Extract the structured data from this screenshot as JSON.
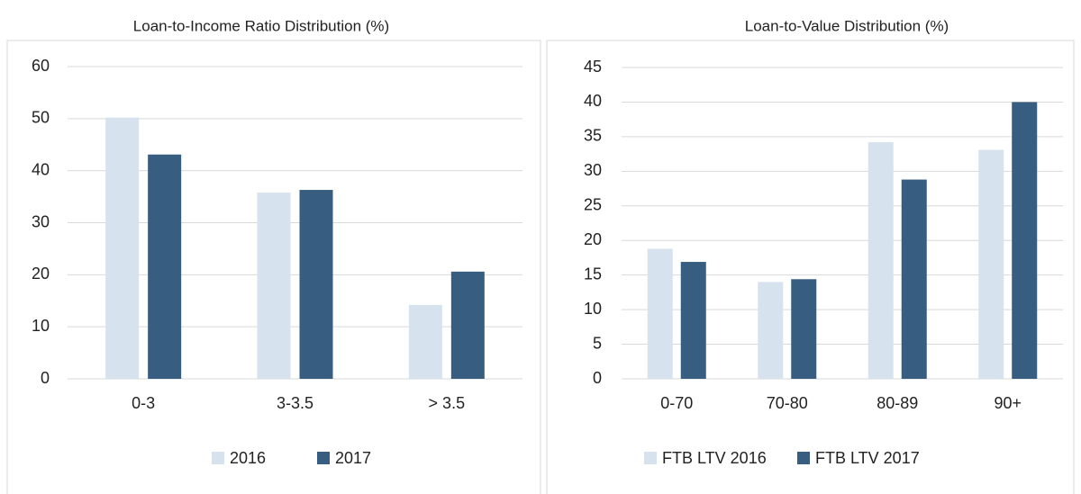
{
  "chart_data": [
    {
      "type": "bar",
      "title": "Loan-to-Income Ratio Distribution (%)",
      "categories": [
        "0-3",
        "3-3.5",
        "> 3.5"
      ],
      "series": [
        {
          "name": "2016",
          "color": "#d6e3ee",
          "values": [
            50.2,
            35.8,
            14.2
          ]
        },
        {
          "name": "2017",
          "color": "#375d80",
          "values": [
            43.1,
            36.3,
            20.6
          ]
        }
      ],
      "ylim": [
        0,
        60
      ],
      "yticks": [
        0,
        10,
        20,
        30,
        40,
        50,
        60
      ],
      "grid": true,
      "legend": "bottom"
    },
    {
      "type": "bar",
      "title": "Loan-to-Value Distribution (%)",
      "categories": [
        "0-70",
        "70-80",
        "80-89",
        "90+"
      ],
      "series": [
        {
          "name": "FTB LTV 2016",
          "color": "#d6e3ee",
          "values": [
            18.8,
            14.0,
            34.2,
            33.1
          ]
        },
        {
          "name": "FTB LTV 2017",
          "color": "#375d80",
          "values": [
            16.9,
            14.4,
            28.8,
            40.0
          ]
        }
      ],
      "ylim": [
        0,
        45
      ],
      "yticks": [
        0,
        5,
        10,
        15,
        20,
        25,
        30,
        35,
        40,
        45
      ],
      "grid": true,
      "legend": "bottom"
    }
  ]
}
